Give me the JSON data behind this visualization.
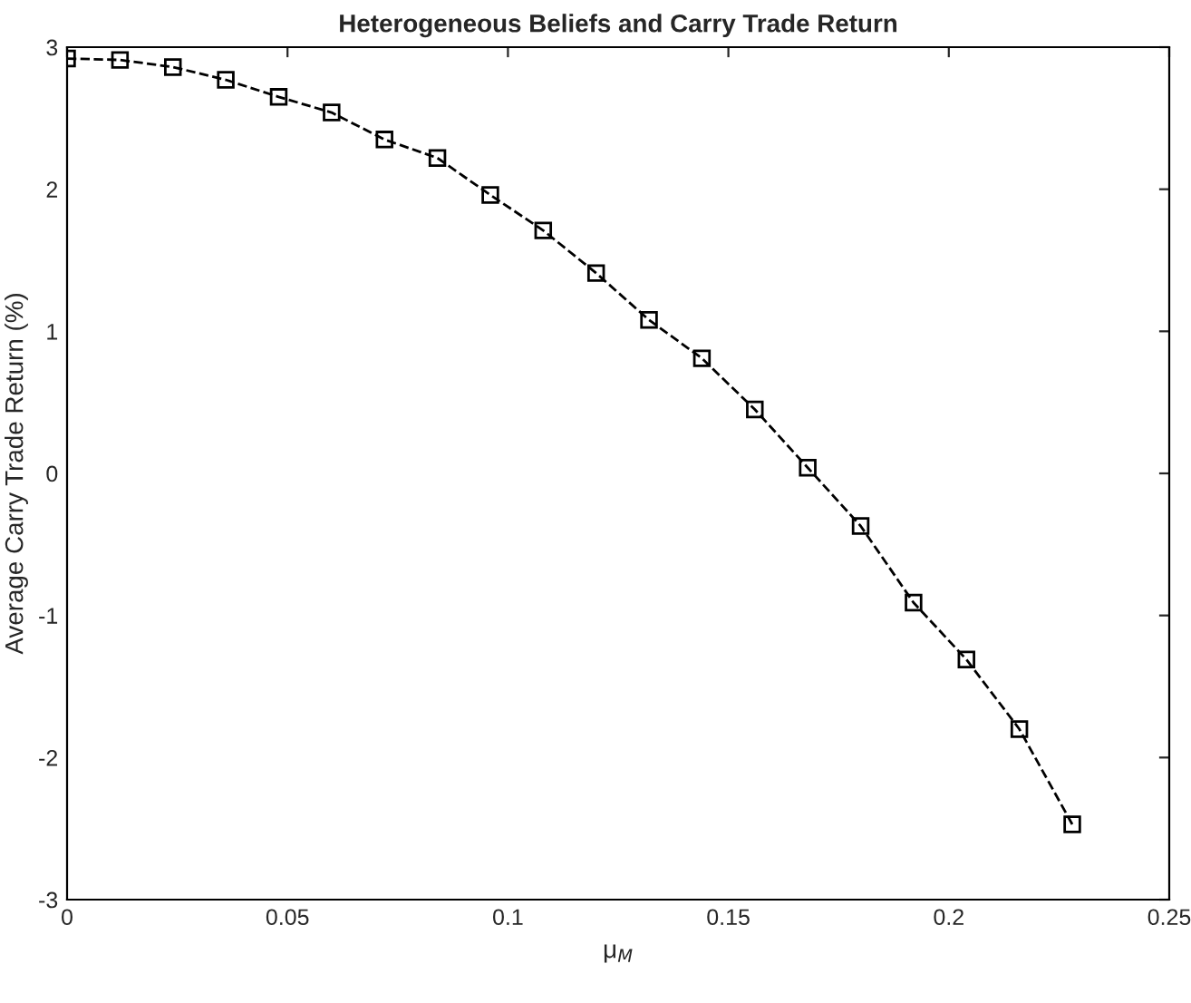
{
  "chart_data": {
    "type": "line",
    "title": "Heterogeneous Beliefs and Carry Trade Return",
    "xlabel": "μ$_{M}$",
    "ylabel": "Average Carry Trade Return (%)",
    "x": [
      0,
      0.012,
      0.024,
      0.036,
      0.048,
      0.06,
      0.072,
      0.084,
      0.096,
      0.108,
      0.12,
      0.132,
      0.144,
      0.156,
      0.168,
      0.18,
      0.192,
      0.204,
      0.216,
      0.228
    ],
    "series": [
      {
        "color": "#000000",
        "values": [
          2.92,
          2.91,
          2.86,
          2.77,
          2.65,
          2.54,
          2.35,
          2.22,
          1.96,
          1.71,
          1.41,
          1.08,
          0.81,
          0.45,
          0.04,
          -0.37,
          -0.91,
          -1.31,
          -1.8,
          -2.47
        ]
      }
    ],
    "xlim": [
      0,
      0.25
    ],
    "xticks": [
      0,
      0.05,
      0.1,
      0.15,
      0.2,
      0.25
    ],
    "ylim": [
      -3,
      3
    ],
    "yticks": [
      -3,
      -2,
      -1,
      0,
      1,
      2,
      3
    ],
    "marker": "square",
    "line_style": "dashed",
    "grid": false,
    "legend": false
  }
}
